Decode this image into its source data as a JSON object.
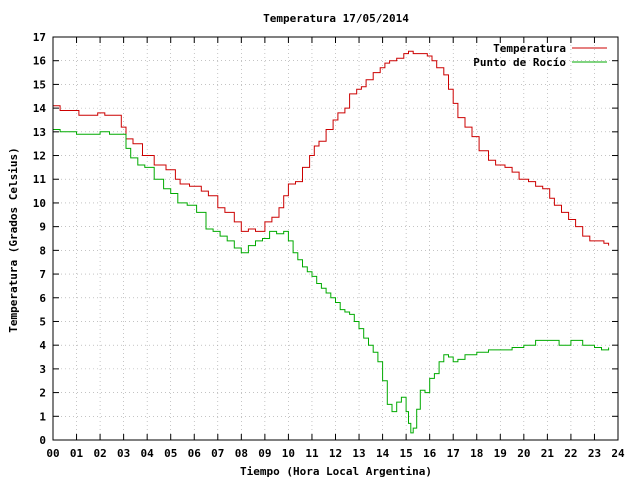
{
  "chart_data": {
    "type": "line",
    "title": "Temperatura 17/05/2014",
    "xlabel": "Tiempo (Hora Local Argentina)",
    "ylabel": "Temperatura (Grados Celsius)",
    "xlim": [
      0,
      24
    ],
    "ylim": [
      0,
      17
    ],
    "x_ticks": [
      "00",
      "01",
      "02",
      "03",
      "04",
      "05",
      "06",
      "07",
      "08",
      "09",
      "10",
      "11",
      "12",
      "13",
      "14",
      "15",
      "16",
      "17",
      "18",
      "19",
      "20",
      "21",
      "22",
      "23",
      "24"
    ],
    "y_ticks": [
      "0",
      "1",
      "2",
      "3",
      "4",
      "5",
      "6",
      "7",
      "8",
      "9",
      "10",
      "11",
      "12",
      "13",
      "14",
      "15",
      "16",
      "17"
    ],
    "grid": true,
    "legend_position": "top-right",
    "series": [
      {
        "name": "Temperatura",
        "color": "#cc0000",
        "x": [
          0,
          0.3,
          1.1,
          1.9,
          2.2,
          2.5,
          2.9,
          3.1,
          3.4,
          3.8,
          4.3,
          4.8,
          5.2,
          5.4,
          5.8,
          6.3,
          6.6,
          7.0,
          7.3,
          7.7,
          8.0,
          8.3,
          8.6,
          9.0,
          9.3,
          9.6,
          9.8,
          10.0,
          10.3,
          10.6,
          10.9,
          11.1,
          11.3,
          11.6,
          11.9,
          12.1,
          12.4,
          12.6,
          12.9,
          13.1,
          13.3,
          13.6,
          13.9,
          14.1,
          14.3,
          14.6,
          14.9,
          15.1,
          15.3,
          15.6,
          15.9,
          16.1,
          16.3,
          16.6,
          16.8,
          17.0,
          17.2,
          17.5,
          17.8,
          18.1,
          18.5,
          18.8,
          19.2,
          19.5,
          19.8,
          20.2,
          20.5,
          20.8,
          21.1,
          21.3,
          21.6,
          21.9,
          22.2,
          22.5,
          22.8,
          23.1,
          23.4,
          23.6
        ],
        "values": [
          14.1,
          13.9,
          13.7,
          13.8,
          13.7,
          13.7,
          13.2,
          12.7,
          12.5,
          12.0,
          11.6,
          11.4,
          11.0,
          10.8,
          10.7,
          10.5,
          10.3,
          9.8,
          9.6,
          9.2,
          8.8,
          8.9,
          8.8,
          9.2,
          9.4,
          9.8,
          10.3,
          10.8,
          10.9,
          11.5,
          12.0,
          12.4,
          12.6,
          13.1,
          13.5,
          13.8,
          14.0,
          14.6,
          14.8,
          14.9,
          15.2,
          15.5,
          15.7,
          15.9,
          16.0,
          16.1,
          16.3,
          16.4,
          16.3,
          16.3,
          16.2,
          16.0,
          15.7,
          15.4,
          14.8,
          14.2,
          13.6,
          13.2,
          12.8,
          12.2,
          11.8,
          11.6,
          11.5,
          11.3,
          11.0,
          10.9,
          10.7,
          10.6,
          10.2,
          9.9,
          9.6,
          9.3,
          9.0,
          8.6,
          8.4,
          8.4,
          8.3,
          8.2
        ]
      },
      {
        "name": "Punto de Rocío",
        "color": "#00aa00",
        "x": [
          0,
          0.3,
          0.6,
          1.0,
          1.5,
          2.0,
          2.4,
          2.9,
          3.1,
          3.3,
          3.6,
          3.9,
          4.3,
          4.7,
          5.0,
          5.3,
          5.7,
          6.1,
          6.5,
          6.8,
          7.1,
          7.4,
          7.7,
          8.0,
          8.3,
          8.6,
          8.9,
          9.2,
          9.5,
          9.8,
          10.0,
          10.2,
          10.4,
          10.6,
          10.8,
          11.0,
          11.2,
          11.4,
          11.6,
          11.8,
          12.0,
          12.2,
          12.4,
          12.6,
          12.8,
          13.0,
          13.2,
          13.4,
          13.6,
          13.8,
          14.0,
          14.2,
          14.4,
          14.6,
          14.8,
          15.0,
          15.1,
          15.2,
          15.3,
          15.45,
          15.6,
          15.8,
          16.0,
          16.2,
          16.4,
          16.6,
          16.8,
          17.0,
          17.2,
          17.5,
          18.0,
          18.5,
          19.0,
          19.5,
          20.0,
          20.5,
          21.0,
          21.5,
          22.0,
          22.5,
          23.0,
          23.3,
          23.6
        ],
        "values": [
          13.1,
          13.0,
          13.0,
          12.9,
          12.9,
          13.0,
          12.9,
          12.9,
          12.3,
          11.9,
          11.6,
          11.5,
          11.0,
          10.6,
          10.4,
          10.0,
          9.9,
          9.6,
          8.9,
          8.8,
          8.6,
          8.4,
          8.1,
          7.9,
          8.2,
          8.4,
          8.5,
          8.8,
          8.7,
          8.8,
          8.4,
          7.9,
          7.6,
          7.3,
          7.1,
          6.9,
          6.6,
          6.4,
          6.2,
          6.0,
          5.8,
          5.5,
          5.4,
          5.3,
          5.0,
          4.7,
          4.3,
          4.0,
          3.7,
          3.3,
          2.5,
          1.5,
          1.2,
          1.6,
          1.8,
          1.2,
          0.7,
          0.3,
          0.5,
          1.3,
          2.1,
          2.0,
          2.6,
          2.8,
          3.3,
          3.6,
          3.5,
          3.3,
          3.4,
          3.6,
          3.7,
          3.8,
          3.8,
          3.9,
          4.0,
          4.2,
          4.2,
          4.0,
          4.2,
          4.0,
          3.9,
          3.8,
          3.9
        ]
      }
    ]
  }
}
